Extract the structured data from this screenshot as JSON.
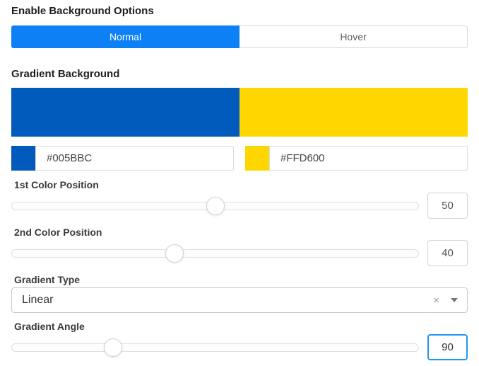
{
  "sections": {
    "enable_title": "Enable Background Options",
    "gradient_title": "Gradient Background"
  },
  "tabs": {
    "items": [
      {
        "label": "Normal",
        "active": true
      },
      {
        "label": "Hover",
        "active": false
      }
    ],
    "active_bg": "#0d80f5",
    "active_text": "#ffffff"
  },
  "gradient": {
    "preview": {
      "color1": "#005BBC",
      "color2": "#FFD600",
      "split_percent": 50
    },
    "colors": [
      {
        "swatch": "#005BBC",
        "value": "#005BBC"
      },
      {
        "swatch": "#FFD600",
        "value": "#FFD600"
      }
    ],
    "sliders": [
      {
        "label": "1st Color Position",
        "value": "50",
        "percent": 50
      },
      {
        "label": "2nd Color Position",
        "value": "40",
        "percent": 40
      }
    ],
    "type": {
      "label": "Gradient Type",
      "value": "Linear",
      "clear_icon": "×"
    },
    "angle": {
      "label": "Gradient Angle",
      "value": "90",
      "percent": 25,
      "focused": true,
      "focus_border": "#2196f3"
    }
  }
}
